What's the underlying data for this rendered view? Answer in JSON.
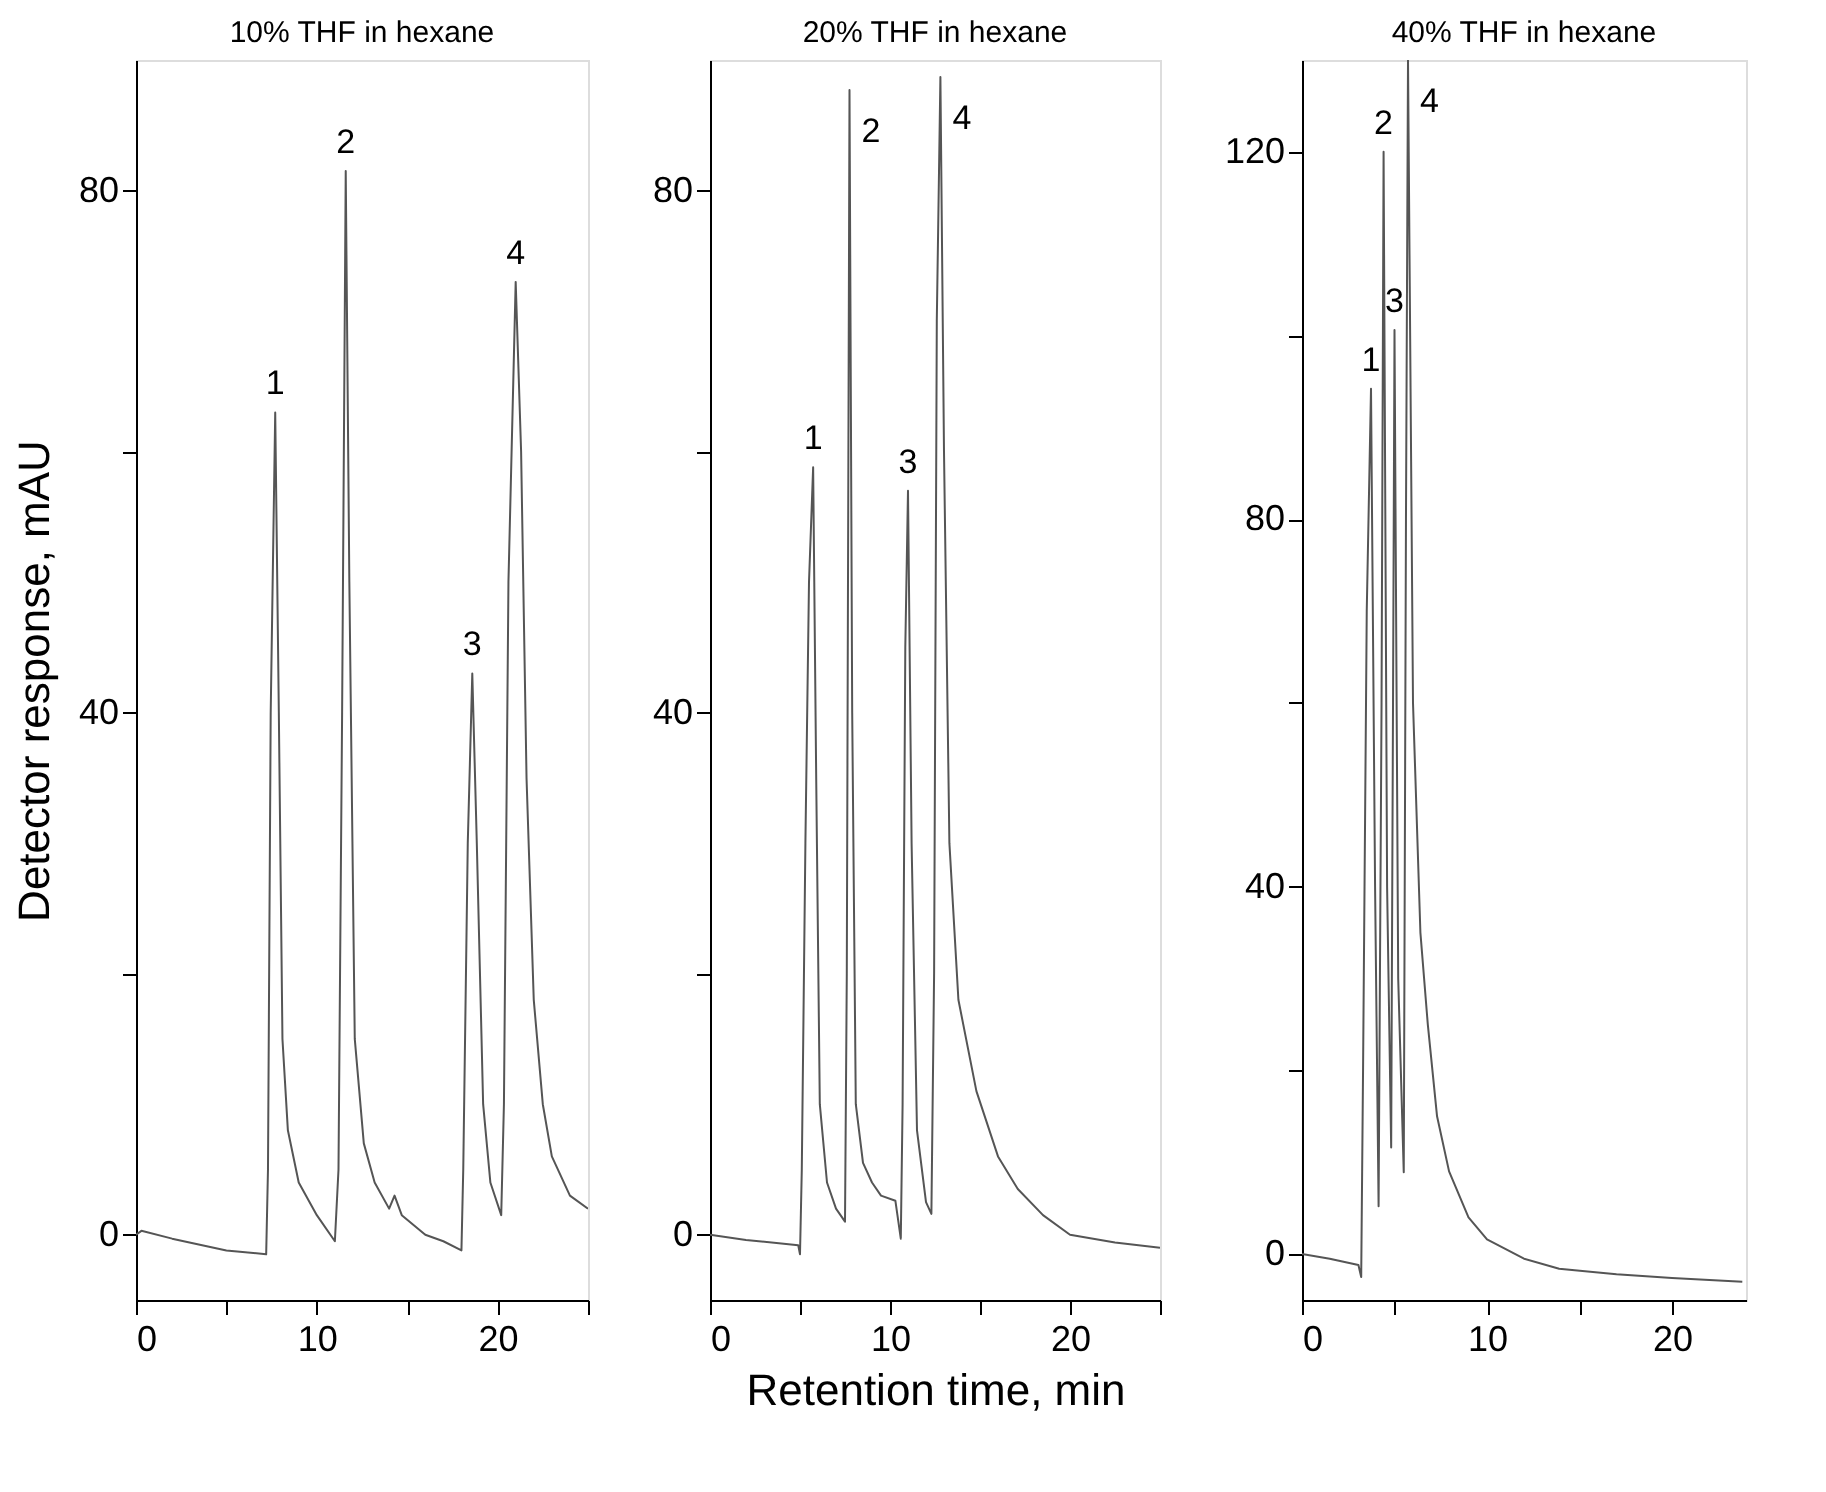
{
  "chart_data": [
    {
      "type": "line",
      "title": "10% THF in hexane",
      "ylabel": "Detector response, mAU",
      "xlim": [
        0,
        25
      ],
      "ylim": [
        -5,
        90
      ],
      "xticks": [
        0,
        {
          "value": 5,
          "label": null
        },
        10,
        {
          "value": 15,
          "label": null
        },
        20,
        {
          "value": 25,
          "label": null
        }
      ],
      "yticks": [
        0,
        {
          "value": 20,
          "label": null
        },
        40,
        {
          "value": 60,
          "label": null
        },
        80
      ],
      "grid": false,
      "marker": "none",
      "line_style": "solid",
      "series": [
        {
          "color": "#555555",
          "x": [
            0,
            0.3,
            2,
            5,
            7.2,
            7.3,
            7.45,
            7.7,
            7.9,
            8.1,
            8.4,
            9,
            10,
            11,
            11.2,
            11.4,
            11.6,
            11.8,
            12.1,
            12.6,
            13.2,
            14,
            14.3,
            14.7,
            16,
            17,
            18,
            18.1,
            18.35,
            18.6,
            18.85,
            19.2,
            19.6,
            20.2,
            20.35,
            20.6,
            21,
            21.3,
            21.6,
            22,
            22.5,
            23,
            24,
            25
          ],
          "values": [
            0,
            0.3,
            -0.3,
            -1.2,
            -1.5,
            5,
            40,
            63,
            40,
            15,
            8,
            4,
            1.5,
            -0.5,
            5,
            40,
            81.5,
            50,
            15,
            7,
            4,
            2,
            3,
            1.5,
            0,
            -0.5,
            -1.2,
            5,
            30,
            43,
            30,
            10,
            4,
            1.5,
            10,
            50,
            73,
            60,
            35,
            18,
            10,
            6,
            3,
            2
          ]
        }
      ],
      "annotations": [
        {
          "text": "1",
          "x": 7.7,
          "y": 63
        },
        {
          "text": "2",
          "x": 11.6,
          "y": 81.5
        },
        {
          "text": "3",
          "x": 18.6,
          "y": 43
        },
        {
          "text": "4",
          "x": 21,
          "y": 73
        }
      ]
    },
    {
      "type": "line",
      "title": "20% THF in hexane",
      "xlabel": "Retention time, min",
      "xlim": [
        0,
        25
      ],
      "ylim": [
        -5,
        90
      ],
      "xticks": [
        0,
        {
          "value": 5,
          "label": null
        },
        10,
        {
          "value": 15,
          "label": null
        },
        20,
        {
          "value": 25,
          "label": null
        }
      ],
      "yticks": [
        0,
        {
          "value": 20,
          "label": null
        },
        40,
        {
          "value": 60,
          "label": null
        },
        80
      ],
      "grid": false,
      "marker": "none",
      "line_style": "solid",
      "series": [
        {
          "color": "#555555",
          "x": [
            0,
            2,
            4.9,
            5.0,
            5.1,
            5.3,
            5.5,
            5.73,
            5.9,
            6.1,
            6.5,
            7.0,
            7.5,
            7.6,
            7.75,
            7.9,
            8.1,
            8.5,
            9,
            9.5,
            10.3,
            10.6,
            10.7,
            10.85,
            11.0,
            11.2,
            11.5,
            12.0,
            12.3,
            12.45,
            12.6,
            12.8,
            13.0,
            13.3,
            13.8,
            14.8,
            16,
            17.1,
            18.5,
            20,
            22.5,
            25
          ],
          "values": [
            0,
            -0.4,
            -0.8,
            -1.5,
            5,
            30,
            50,
            58.8,
            35,
            10,
            4,
            2,
            1,
            20,
            87.7,
            40,
            10,
            5.5,
            4,
            3,
            2.6,
            -0.3,
            10,
            45,
            57,
            30,
            8,
            2.5,
            1.6,
            20,
            70,
            88.7,
            60,
            30,
            18,
            11,
            6,
            3.5,
            1.5,
            0,
            -0.6,
            -1
          ]
        }
      ],
      "annotations": [
        {
          "text": "1",
          "x": 5.73,
          "y": 58.8
        },
        {
          "text": "2",
          "x": 7.75,
          "y": 87.7
        },
        {
          "text": "3",
          "x": 11.0,
          "y": 57
        },
        {
          "text": "4",
          "x": 12.8,
          "y": 88.7
        }
      ]
    },
    {
      "type": "line",
      "title": "40% THF in hexane",
      "xlim": [
        0,
        24
      ],
      "ylim": [
        -5,
        130
      ],
      "xticks": [
        0,
        {
          "value": 5,
          "label": null
        },
        10,
        {
          "value": 15,
          "label": null
        },
        20
      ],
      "yticks": [
        0,
        {
          "value": 20,
          "label": null
        },
        40,
        {
          "value": 60,
          "label": null
        },
        80,
        {
          "value": 100,
          "label": null
        },
        120
      ],
      "grid": false,
      "marker": "none",
      "line_style": "solid",
      "series": [
        {
          "color": "#555555",
          "x": [
            0,
            1.5,
            3.05,
            3.2,
            3.3,
            3.5,
            3.73,
            3.95,
            4.14,
            4.3,
            4.41,
            4.6,
            4.82,
            4.92,
            5.0,
            5.2,
            5.5,
            5.62,
            5.73,
            6.0,
            6.4,
            6.8,
            7.3,
            7.95,
            9,
            10,
            12,
            13.9,
            17,
            20,
            23.8
          ],
          "values": [
            0,
            -0.5,
            -1.2,
            -2.5,
            20,
            70,
            94.2,
            40,
            5.2,
            60,
            120,
            40,
            11.6,
            60,
            100.6,
            30,
            8.9,
            80,
            130,
            60,
            35,
            25,
            15,
            9,
            4,
            1.6,
            -0.5,
            -1.6,
            -2.2,
            -2.6,
            -3
          ]
        }
      ],
      "annotations": [
        {
          "text": "1",
          "x": 3.73,
          "y": 94.2
        },
        {
          "text": "2",
          "x": 4.41,
          "y": 120
        },
        {
          "text": "3",
          "x": 5.0,
          "y": 100.6
        },
        {
          "text": "4",
          "x": 5.73,
          "y": 130
        }
      ]
    }
  ]
}
